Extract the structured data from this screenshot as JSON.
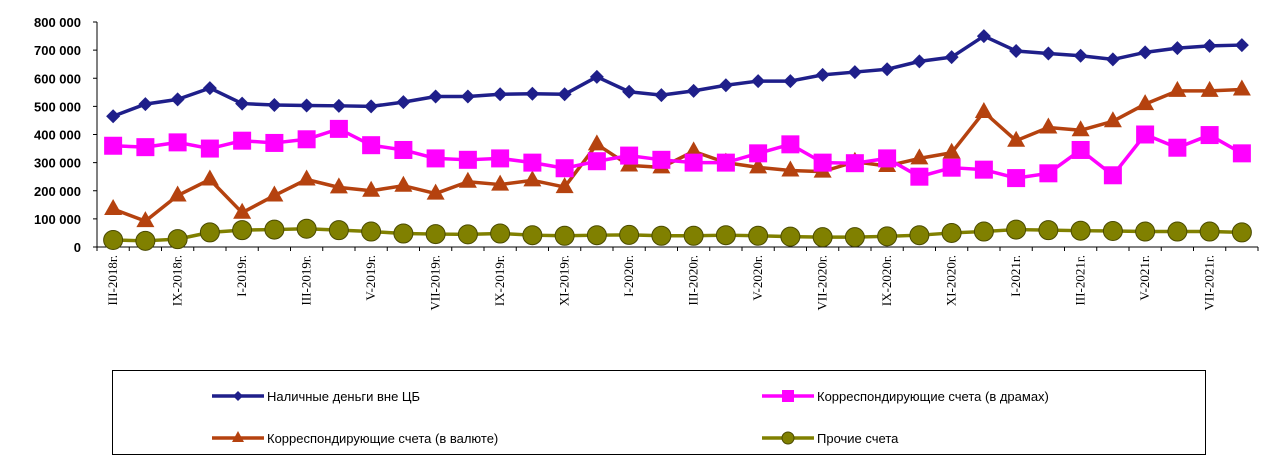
{
  "chart_data": {
    "type": "line",
    "title": "",
    "xlabel": "",
    "ylabel": "",
    "ylim": [
      0,
      800000
    ],
    "yticks": [
      "0",
      "100 000",
      "200 000",
      "300 000",
      "400 000",
      "500 000",
      "600 000",
      "700 000",
      "800 000"
    ],
    "grid": false,
    "legend_position": "bottom",
    "x_tick_labels": [
      {
        "index": 0,
        "label": "III-2018г."
      },
      {
        "index": 2,
        "label": "IX-2018г."
      },
      {
        "index": 4,
        "label": "I-2019г."
      },
      {
        "index": 6,
        "label": "III-2019г."
      },
      {
        "index": 8,
        "label": "V-2019г."
      },
      {
        "index": 10,
        "label": "VII-2019г."
      },
      {
        "index": 12,
        "label": "IX-2019г."
      },
      {
        "index": 14,
        "label": "XI-2019г."
      },
      {
        "index": 16,
        "label": "I-2020г."
      },
      {
        "index": 18,
        "label": "III-2020г."
      },
      {
        "index": 20,
        "label": "V-2020г."
      },
      {
        "index": 22,
        "label": "VII-2020г."
      },
      {
        "index": 24,
        "label": "IX-2020г."
      },
      {
        "index": 26,
        "label": "XI-2020г."
      },
      {
        "index": 28,
        "label": "I-2021г."
      },
      {
        "index": 30,
        "label": "III-2021г."
      },
      {
        "index": 32,
        "label": "V-2021г."
      },
      {
        "index": 34,
        "label": "VII-2021г."
      }
    ],
    "series": [
      {
        "name": "Наличные деньги вне ЦБ",
        "color": "#1f1f8a",
        "marker": "diamond",
        "values": [
          465000,
          508000,
          525000,
          565000,
          510000,
          505000,
          503000,
          502000,
          500000,
          515000,
          535000,
          535000,
          543000,
          545000,
          543000,
          605000,
          552000,
          540000,
          555000,
          575000,
          590000,
          590000,
          612000,
          622000,
          632000,
          660000,
          675000,
          750000,
          697000,
          688000,
          680000,
          667000,
          692000,
          707000,
          715000,
          718000
        ]
      },
      {
        "name": "Корреспондирующие счета (в драмах)",
        "color": "#ff00ff",
        "marker": "square",
        "values": [
          360000,
          355000,
          372000,
          350000,
          378000,
          370000,
          383000,
          420000,
          362000,
          345000,
          315000,
          310000,
          315000,
          300000,
          280000,
          305000,
          325000,
          310000,
          300000,
          300000,
          333000,
          365000,
          300000,
          298000,
          315000,
          250000,
          282000,
          275000,
          245000,
          262000,
          345000,
          255000,
          400000,
          353000,
          398000,
          333000
        ]
      },
      {
        "name": "Корреспондирующие счета (в валюте)",
        "color": "#b5420f",
        "marker": "triangle",
        "values": [
          135000,
          92000,
          183000,
          240000,
          122000,
          183000,
          240000,
          212000,
          200000,
          218000,
          190000,
          232000,
          222000,
          237000,
          213000,
          365000,
          290000,
          283000,
          340000,
          300000,
          283000,
          272000,
          268000,
          303000,
          288000,
          315000,
          335000,
          480000,
          378000,
          425000,
          415000,
          447000,
          508000,
          555000,
          555000,
          560000
        ]
      },
      {
        "name": "Прочие счета",
        "color": "#808000",
        "marker": "circle",
        "values": [
          25000,
          22000,
          28000,
          52000,
          60000,
          62000,
          65000,
          60000,
          55000,
          48000,
          46000,
          45000,
          48000,
          42000,
          40000,
          42000,
          43000,
          40000,
          40000,
          42000,
          40000,
          37000,
          35000,
          35000,
          38000,
          42000,
          50000,
          55000,
          62000,
          60000,
          58000,
          57000,
          55000,
          55000,
          55000,
          52000
        ]
      }
    ]
  }
}
